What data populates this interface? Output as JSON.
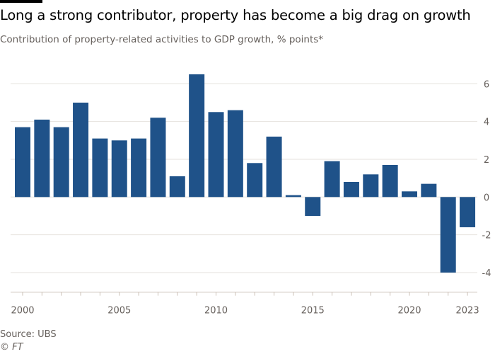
{
  "chart_data": {
    "type": "bar",
    "title": "Long a strong contributor, property has become a big drag on growth",
    "subtitle": "Contribution of property-related activities to GDP growth, % points*",
    "categories": [
      2000,
      2001,
      2002,
      2003,
      2004,
      2005,
      2006,
      2007,
      2008,
      2009,
      2010,
      2011,
      2012,
      2013,
      2014,
      2015,
      2016,
      2017,
      2018,
      2019,
      2020,
      2021,
      2022,
      2023
    ],
    "values": [
      3.7,
      4.1,
      3.7,
      5.0,
      3.1,
      3.0,
      3.1,
      4.2,
      1.1,
      6.5,
      4.5,
      4.6,
      1.8,
      3.2,
      0.1,
      -1.0,
      1.9,
      0.8,
      1.2,
      1.7,
      0.3,
      0.7,
      -4.0,
      -1.6
    ],
    "xticks": [
      "2000",
      "2005",
      "2010",
      "2015",
      "2020",
      "2023"
    ],
    "yticks": [
      6,
      4,
      2,
      0,
      -2,
      -4
    ],
    "ylim": [
      -5,
      6.5
    ],
    "grid": true,
    "y_axis_side": "right",
    "bar_color": "#1f5289",
    "xlabel": "",
    "ylabel": ""
  },
  "footer": {
    "source": "Source: UBS",
    "copyright": "© FT"
  }
}
